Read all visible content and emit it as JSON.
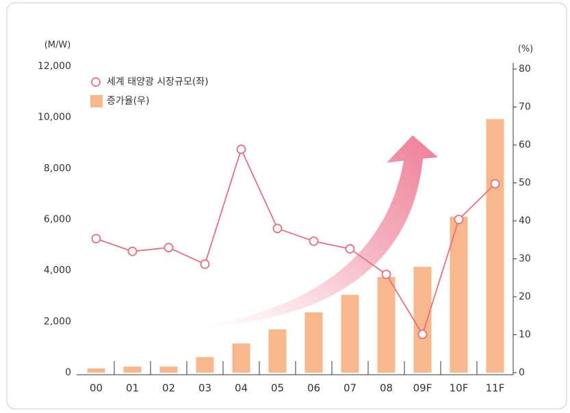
{
  "chart_data": {
    "type": "bar-line",
    "y_unit": "(M/W)",
    "y2_unit": "(%)",
    "categories": [
      "00",
      "01",
      "02",
      "03",
      "04",
      "05",
      "06",
      "07",
      "08",
      "09F",
      "10F",
      "11F"
    ],
    "series": [
      {
        "name": "세계 태양광 시장규모(좌)",
        "type": "line",
        "axis": "y",
        "color": "#e8707f",
        "values": [
          5250,
          4750,
          4900,
          4250,
          8750,
          5650,
          5150,
          4850,
          3850,
          1500,
          6000,
          7400
        ]
      },
      {
        "name": "증가율(우)",
        "type": "bar",
        "axis": "y2",
        "color": "#f8b88b",
        "values": [
          1.1,
          1.6,
          1.6,
          4.1,
          7.7,
          11.4,
          15.9,
          20.5,
          25.2,
          27.9,
          41.1,
          66.8
        ]
      }
    ],
    "ylim": [
      0,
      12000
    ],
    "yticks": [
      0,
      {
        "value": 2000,
        "label": "2,000"
      },
      {
        "value": 4000,
        "label": "4,000"
      },
      {
        "value": 6000,
        "label": "6,000"
      },
      {
        "value": 8000,
        "label": "8,000"
      },
      {
        "value": 10000,
        "label": "10,000"
      },
      {
        "value": 12000,
        "label": "12,000"
      }
    ],
    "y2lim": [
      0,
      80
    ],
    "y2ticks": [
      0,
      10,
      20,
      30,
      40,
      50,
      60,
      70,
      80
    ]
  }
}
